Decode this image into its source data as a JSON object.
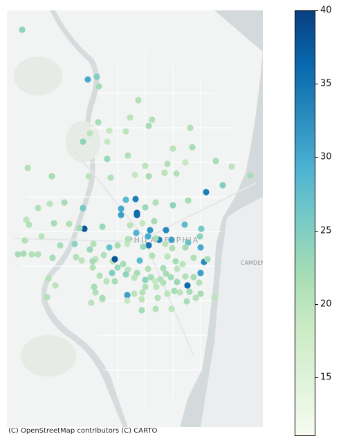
{
  "map": {
    "attribution": "(C) OpenStreetMap contributors (C) CARTO",
    "place_labels": [
      "PHILADELPHIA",
      "CAMDEN"
    ]
  },
  "colorbar": {
    "min": 11,
    "max": 40,
    "ticks": [
      {
        "value": 15,
        "label": "15"
      },
      {
        "value": 20,
        "label": "20"
      },
      {
        "value": 25,
        "label": "25"
      },
      {
        "value": 30,
        "label": "30"
      },
      {
        "value": 35,
        "label": "35"
      },
      {
        "value": 40,
        "label": "40"
      }
    ],
    "colormap": "GnBu",
    "stops": [
      "#f7fcf0",
      "#e0f3db",
      "#ccebc5",
      "#a8ddb5",
      "#7bccc4",
      "#4eb3d3",
      "#2b8cbe",
      "#0868ac",
      "#084081"
    ]
  },
  "points_note_excluded": false,
  "chart_data": {
    "type": "scatter",
    "color_value_range": [
      11,
      40
    ],
    "points": [
      {
        "v": 24
      },
      {
        "v": 30
      },
      {
        "v": 25
      },
      {
        "v": 22
      },
      {
        "v": 21
      },
      {
        "v": 20
      },
      {
        "v": 21
      },
      {
        "v": 22
      },
      {
        "v": 19
      },
      {
        "v": 20
      },
      {
        "v": 22
      },
      {
        "v": 24
      },
      {
        "v": 20
      },
      {
        "v": 19
      },
      {
        "v": 21
      },
      {
        "v": 20
      },
      {
        "v": 22
      },
      {
        "v": 23
      },
      {
        "v": 21
      },
      {
        "v": 20
      },
      {
        "v": 21
      },
      {
        "v": 19
      },
      {
        "v": 22
      },
      {
        "v": 20
      },
      {
        "v": 21
      },
      {
        "v": 22
      },
      {
        "v": 20
      },
      {
        "v": 21
      },
      {
        "v": 19
      },
      {
        "v": 22
      },
      {
        "v": 20
      },
      {
        "v": 21
      },
      {
        "v": 34
      },
      {
        "v": 25
      },
      {
        "v": 22
      },
      {
        "v": 21
      },
      {
        "v": 20
      },
      {
        "v": 22
      },
      {
        "v": 26
      },
      {
        "v": 34
      },
      {
        "v": 30
      },
      {
        "v": 36
      },
      {
        "v": 28
      },
      {
        "v": 23
      },
      {
        "v": 21
      },
      {
        "v": 24
      },
      {
        "v": 22
      },
      {
        "v": 20
      },
      {
        "v": 21
      },
      {
        "v": 38
      },
      {
        "v": 22
      },
      {
        "v": 21
      },
      {
        "v": 23
      },
      {
        "v": 20
      },
      {
        "v": 19
      },
      {
        "v": 22
      },
      {
        "v": 36
      },
      {
        "v": 31
      },
      {
        "v": 29
      },
      {
        "v": 32
      },
      {
        "v": 33
      },
      {
        "v": 28
      },
      {
        "v": 26
      },
      {
        "v": 22
      },
      {
        "v": 21
      },
      {
        "v": 20
      },
      {
        "v": 22
      },
      {
        "v": 24
      },
      {
        "v": 21
      },
      {
        "v": 27
      },
      {
        "v": 30
      },
      {
        "v": 35
      },
      {
        "v": 34
      },
      {
        "v": 31
      },
      {
        "v": 27
      },
      {
        "v": 24
      },
      {
        "v": 22
      },
      {
        "v": 21
      },
      {
        "v": 23
      },
      {
        "v": 20
      },
      {
        "v": 22
      },
      {
        "v": 21
      },
      {
        "v": 20
      },
      {
        "v": 19
      },
      {
        "v": 22
      },
      {
        "v": 21
      },
      {
        "v": 23
      },
      {
        "v": 22
      },
      {
        "v": 20
      },
      {
        "v": 21
      },
      {
        "v": 22
      },
      {
        "v": 30
      },
      {
        "v": 33
      },
      {
        "v": 22
      },
      {
        "v": 21
      },
      {
        "v": 20
      },
      {
        "v": 28
      },
      {
        "v": 22
      },
      {
        "v": 21
      },
      {
        "v": 20
      },
      {
        "v": 22
      },
      {
        "v": 21
      },
      {
        "v": 38
      },
      {
        "v": 22
      },
      {
        "v": 20
      },
      {
        "v": 21
      },
      {
        "v": 22
      },
      {
        "v": 21
      },
      {
        "v": 23
      },
      {
        "v": 20
      },
      {
        "v": 22
      },
      {
        "v": 21
      },
      {
        "v": 22
      },
      {
        "v": 20
      },
      {
        "v": 21
      },
      {
        "v": 22
      },
      {
        "v": 20
      },
      {
        "v": 24
      },
      {
        "v": 21
      },
      {
        "v": 22
      },
      {
        "v": 23
      },
      {
        "v": 31
      },
      {
        "v": 22
      },
      {
        "v": 20
      },
      {
        "v": 21
      },
      {
        "v": 22
      },
      {
        "v": 20
      },
      {
        "v": 36
      },
      {
        "v": 22
      },
      {
        "v": 21
      },
      {
        "v": 20
      },
      {
        "v": 22
      },
      {
        "v": 21
      },
      {
        "v": 20
      },
      {
        "v": 22
      },
      {
        "v": 21
      },
      {
        "v": 25
      },
      {
        "v": 22
      },
      {
        "v": 21
      },
      {
        "v": 20
      },
      {
        "v": 24
      },
      {
        "v": 22
      },
      {
        "v": 21
      },
      {
        "v": 20
      },
      {
        "v": 31
      },
      {
        "v": 21
      },
      {
        "v": 20
      },
      {
        "v": 19
      },
      {
        "v": 20
      },
      {
        "v": 21
      },
      {
        "v": 22
      },
      {
        "v": 21
      },
      {
        "v": 20
      },
      {
        "v": 19
      },
      {
        "v": 22
      },
      {
        "v": 21
      },
      {
        "v": 20
      },
      {
        "v": 22
      },
      {
        "v": 21
      },
      {
        "v": 20
      }
    ]
  }
}
